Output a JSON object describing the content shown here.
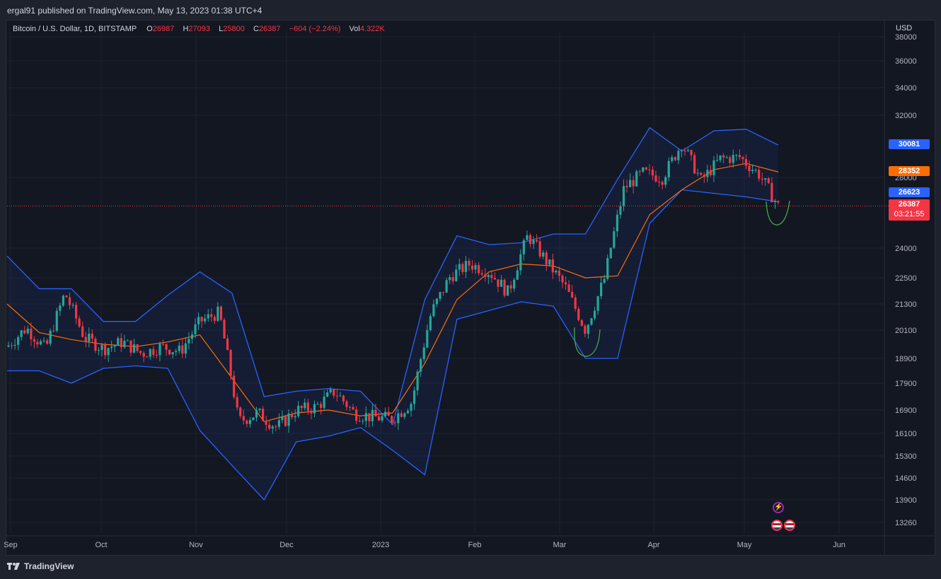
{
  "header": {
    "publish_line": "ergal91 published on TradingView.com, May 13, 2023 01:38 UTC+4"
  },
  "legend": {
    "symbol": "Bitcoin / U.S. Dollar, 1D, BITSTAMP",
    "o_label": "O",
    "o_value": "26987",
    "h_label": "H",
    "h_value": "27093",
    "l_label": "L",
    "l_value": "25800",
    "c_label": "C",
    "c_value": "26387",
    "change": "−604 (−2.24%)",
    "vol_label": "Vol",
    "vol_value": "4.322K"
  },
  "price_axis": {
    "currency": "USD",
    "ticks": [
      "38000",
      "36000",
      "34000",
      "32000",
      "28000",
      "24000",
      "22500",
      "21300",
      "20100",
      "18900",
      "17900",
      "16900",
      "16100",
      "15300",
      "14600",
      "13900",
      "13260"
    ]
  },
  "time_axis": {
    "ticks": [
      "Sep",
      "Oct",
      "Nov",
      "Dec",
      "2023",
      "Feb",
      "Mar",
      "Apr",
      "May",
      "Jun"
    ]
  },
  "price_tags": {
    "upper_band": "30081",
    "basis": "28352",
    "lower_band": "26623",
    "last_price": "26387",
    "countdown": "03:21:55"
  },
  "colors": {
    "background": "#131722",
    "up": "#26a69a",
    "down": "#f23645",
    "band": "#2962ff",
    "basis": "#ff6d00",
    "annotation": "#4caf50"
  },
  "event_icons": [
    "lightning-icon",
    "us-flag-icon",
    "us-flag-icon"
  ],
  "footer": {
    "brand": "TradingView"
  },
  "chart_data": {
    "type": "candlestick",
    "title": "Bitcoin / U.S. Dollar, 1D, BITSTAMP",
    "indicator": "Bollinger Bands",
    "y_scale": "log",
    "ylim": [
      13000,
      38500
    ],
    "series": [
      {
        "name": "price_path",
        "points": [
          [
            "Sep",
            19400
          ],
          [
            "Sep",
            20200
          ],
          [
            "Sep",
            19300
          ],
          [
            "Sep",
            21800
          ],
          [
            "Sep",
            19800
          ],
          [
            "Sep",
            19300
          ],
          [
            "Oct",
            19600
          ],
          [
            "Oct",
            19100
          ],
          [
            "Oct",
            19400
          ],
          [
            "Oct",
            19200
          ],
          [
            "Nov",
            20500
          ],
          [
            "Nov",
            20900
          ],
          [
            "Nov",
            16500
          ],
          [
            "Nov",
            16800
          ],
          [
            "Nov",
            16300
          ],
          [
            "Dec",
            16900
          ],
          [
            "Dec",
            17000
          ],
          [
            "Dec",
            17600
          ],
          [
            "Dec",
            16800
          ],
          [
            "Dec",
            16650
          ],
          [
            "2023",
            16600
          ],
          [
            "2023",
            17200
          ],
          [
            "2023",
            20900
          ],
          [
            "2023",
            22600
          ],
          [
            "Feb",
            23200
          ],
          [
            "Feb",
            22800
          ],
          [
            "Feb",
            21800
          ],
          [
            "Feb",
            24700
          ],
          [
            "Mar",
            23300
          ],
          [
            "Mar",
            22000
          ],
          [
            "Mar",
            20100
          ],
          [
            "Mar",
            22500
          ],
          [
            "Mar",
            27400
          ],
          [
            "Apr",
            28300
          ],
          [
            "Apr",
            28000
          ],
          [
            "Apr",
            30200
          ],
          [
            "Apr",
            27800
          ],
          [
            "Apr",
            29200
          ],
          [
            "May",
            29300
          ],
          [
            "May",
            28200
          ],
          [
            "May",
            26387
          ]
        ]
      }
    ],
    "bollinger_upper": [
      [
        "Sep",
        23600
      ],
      [
        "Sep",
        22000
      ],
      [
        "Sep",
        22000
      ],
      [
        "Oct",
        20500
      ],
      [
        "Oct",
        20500
      ],
      [
        "Nov",
        21700
      ],
      [
        "Nov",
        22800
      ],
      [
        "Nov",
        21800
      ],
      [
        "Nov",
        17400
      ],
      [
        "Dec",
        17600
      ],
      [
        "Dec",
        17700
      ],
      [
        "2023",
        17600
      ],
      [
        "2023",
        16400
      ],
      [
        "Jan",
        21500
      ],
      [
        "Feb",
        24700
      ],
      [
        "Feb",
        24200
      ],
      [
        "Feb",
        24300
      ],
      [
        "Mar",
        24800
      ],
      [
        "Mar",
        24800
      ],
      [
        "Mar",
        27900
      ],
      [
        "Apr",
        31200
      ],
      [
        "Apr",
        29700
      ],
      [
        "Apr",
        31000
      ],
      [
        "May",
        31100
      ],
      [
        "May",
        30081
      ]
    ],
    "bollinger_lower": [
      [
        "Sep",
        18400
      ],
      [
        "Sep",
        18400
      ],
      [
        "Sep",
        17900
      ],
      [
        "Oct",
        18500
      ],
      [
        "Oct",
        18600
      ],
      [
        "Nov",
        18500
      ],
      [
        "Nov",
        16200
      ],
      [
        "Nov",
        15000
      ],
      [
        "Nov",
        13900
      ],
      [
        "Dec",
        15800
      ],
      [
        "Dec",
        16000
      ],
      [
        "2023",
        16300
      ],
      [
        "2023",
        15500
      ],
      [
        "Jan",
        14700
      ],
      [
        "Feb",
        20600
      ],
      [
        "Feb",
        21000
      ],
      [
        "Feb",
        21400
      ],
      [
        "Mar",
        21200
      ],
      [
        "Mar",
        18900
      ],
      [
        "Mar",
        18900
      ],
      [
        "Apr",
        25400
      ],
      [
        "Apr",
        27300
      ],
      [
        "Apr",
        27100
      ],
      [
        "May",
        26900
      ],
      [
        "May",
        26623
      ]
    ],
    "bollinger_basis": [
      [
        "Sep",
        21300
      ],
      [
        "Sep",
        20000
      ],
      [
        "Sep",
        19700
      ],
      [
        "Oct",
        19500
      ],
      [
        "Oct",
        19400
      ],
      [
        "Nov",
        19600
      ],
      [
        "Nov",
        19900
      ],
      [
        "Nov",
        18100
      ],
      [
        "Nov",
        16500
      ],
      [
        "Dec",
        16800
      ],
      [
        "Dec",
        16900
      ],
      [
        "2023",
        16700
      ],
      [
        "2023",
        16800
      ],
      [
        "Jan",
        18700
      ],
      [
        "Feb",
        21500
      ],
      [
        "Feb",
        22800
      ],
      [
        "Feb",
        23200
      ],
      [
        "Mar",
        23100
      ],
      [
        "Mar",
        22500
      ],
      [
        "Mar",
        22600
      ],
      [
        "Apr",
        25900
      ],
      [
        "Apr",
        27300
      ],
      [
        "Apr",
        28500
      ],
      [
        "May",
        28900
      ],
      [
        "May",
        28352
      ]
    ],
    "last_price": 26387
  }
}
